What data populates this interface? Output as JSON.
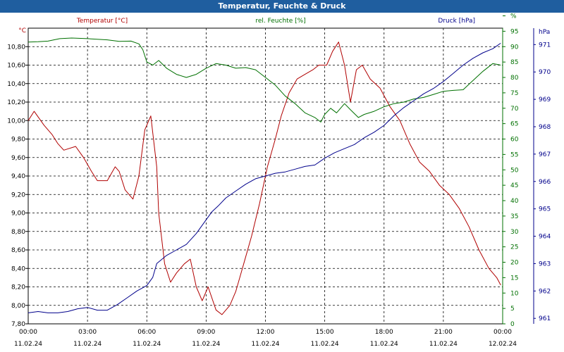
{
  "window": {
    "title": "Temperatur, Feuchte & Druck"
  },
  "chart_data": {
    "type": "line",
    "x_ticks": [
      {
        "time": "00:00",
        "date": "11.02.24"
      },
      {
        "time": "03:00",
        "date": "11.02.24"
      },
      {
        "time": "06:00",
        "date": "11.02.24"
      },
      {
        "time": "09:00",
        "date": "11.02.24"
      },
      {
        "time": "12:00",
        "date": "11.02.24"
      },
      {
        "time": "15:00",
        "date": "11.02.24"
      },
      {
        "time": "18:00",
        "date": "11.02.24"
      },
      {
        "time": "21:00",
        "date": "11.02.24"
      },
      {
        "time": "00:00",
        "date": "12.02.24"
      }
    ],
    "xlim_hours": [
      0,
      24
    ],
    "grid": true,
    "axes": {
      "left": {
        "unit": "°C",
        "min": 7.8,
        "max": 11.0,
        "ticks": [
          "7,80",
          "8,00",
          "8,20",
          "8,40",
          "8,60",
          "8,80",
          "9,00",
          "9,20",
          "9,40",
          "9,60",
          "9,80",
          "10,00",
          "10,20",
          "10,40",
          "10,60",
          "10,80"
        ],
        "color": "#b00000"
      },
      "right1": {
        "unit": "%",
        "min": 0,
        "max": 96,
        "ticks": [
          "0",
          "5",
          "10",
          "15",
          "20",
          "25",
          "30",
          "35",
          "40",
          "45",
          "50",
          "55",
          "60",
          "65",
          "70",
          "75",
          "80",
          "85",
          "90",
          "95",
          "%"
        ],
        "color": "#007000"
      },
      "right2": {
        "unit": "hPa",
        "min": 960.8,
        "max": 971.6,
        "ticks": [
          "961",
          "962",
          "963",
          "964",
          "965",
          "966",
          "967",
          "968",
          "969",
          "970",
          "971"
        ],
        "color": "#00008b"
      }
    },
    "series": [
      {
        "name": "Temperatur [°C]",
        "axis": "left",
        "color": "#b00000",
        "points": [
          [
            0,
            10.0
          ],
          [
            0.3,
            10.1
          ],
          [
            0.8,
            9.95
          ],
          [
            1.2,
            9.85
          ],
          [
            1.5,
            9.75
          ],
          [
            1.8,
            9.68
          ],
          [
            2.4,
            9.72
          ],
          [
            2.8,
            9.6
          ],
          [
            3.2,
            9.45
          ],
          [
            3.5,
            9.35
          ],
          [
            4.0,
            9.35
          ],
          [
            4.4,
            9.5
          ],
          [
            4.6,
            9.45
          ],
          [
            4.9,
            9.25
          ],
          [
            5.3,
            9.15
          ],
          [
            5.6,
            9.4
          ],
          [
            5.9,
            9.9
          ],
          [
            6.2,
            10.05
          ],
          [
            6.5,
            9.5
          ],
          [
            6.6,
            9.0
          ],
          [
            6.9,
            8.45
          ],
          [
            7.2,
            8.25
          ],
          [
            7.5,
            8.35
          ],
          [
            7.9,
            8.45
          ],
          [
            8.2,
            8.5
          ],
          [
            8.5,
            8.2
          ],
          [
            8.8,
            8.05
          ],
          [
            9.1,
            8.2
          ],
          [
            9.5,
            7.95
          ],
          [
            9.8,
            7.9
          ],
          [
            10.2,
            8.0
          ],
          [
            10.5,
            8.15
          ],
          [
            10.9,
            8.45
          ],
          [
            11.3,
            8.75
          ],
          [
            11.7,
            9.1
          ],
          [
            12.1,
            9.5
          ],
          [
            12.5,
            9.8
          ],
          [
            12.8,
            10.05
          ],
          [
            13.2,
            10.3
          ],
          [
            13.6,
            10.45
          ],
          [
            14.0,
            10.5
          ],
          [
            14.4,
            10.55
          ],
          [
            14.7,
            10.6
          ],
          [
            15.1,
            10.6
          ],
          [
            15.4,
            10.75
          ],
          [
            15.7,
            10.85
          ],
          [
            16.0,
            10.6
          ],
          [
            16.3,
            10.2
          ],
          [
            16.6,
            10.55
          ],
          [
            16.9,
            10.6
          ],
          [
            17.3,
            10.45
          ],
          [
            17.8,
            10.35
          ],
          [
            18.3,
            10.15
          ],
          [
            18.8,
            10.0
          ],
          [
            19.3,
            9.75
          ],
          [
            19.8,
            9.55
          ],
          [
            20.3,
            9.45
          ],
          [
            20.8,
            9.3
          ],
          [
            21.3,
            9.2
          ],
          [
            21.8,
            9.05
          ],
          [
            22.3,
            8.85
          ],
          [
            22.8,
            8.6
          ],
          [
            23.3,
            8.4
          ],
          [
            23.7,
            8.3
          ],
          [
            23.9,
            8.22
          ]
        ]
      },
      {
        "name": "rel. Feuchte [%]",
        "axis": "right1",
        "color": "#007000",
        "points": [
          [
            0,
            91.5
          ],
          [
            0.5,
            91.6
          ],
          [
            1.0,
            91.8
          ],
          [
            1.6,
            92.6
          ],
          [
            2.2,
            92.8
          ],
          [
            3.0,
            92.6
          ],
          [
            4.0,
            92.2
          ],
          [
            4.6,
            91.7
          ],
          [
            5.2,
            91.8
          ],
          [
            5.6,
            90.9
          ],
          [
            5.8,
            89.0
          ],
          [
            6.0,
            85.0
          ],
          [
            6.3,
            84.0
          ],
          [
            6.6,
            85.5
          ],
          [
            7.0,
            83.0
          ],
          [
            7.5,
            81.0
          ],
          [
            8.0,
            80.0
          ],
          [
            8.5,
            81.0
          ],
          [
            9.0,
            83.0
          ],
          [
            9.5,
            84.5
          ],
          [
            10.0,
            84.0
          ],
          [
            10.5,
            83.0
          ],
          [
            11.0,
            83.2
          ],
          [
            11.5,
            82.5
          ],
          [
            12.0,
            80.0
          ],
          [
            12.5,
            77.5
          ],
          [
            13.0,
            74.0
          ],
          [
            13.5,
            71.5
          ],
          [
            14.0,
            68.5
          ],
          [
            14.5,
            67.0
          ],
          [
            14.8,
            65.5
          ],
          [
            15.0,
            68.0
          ],
          [
            15.3,
            70.0
          ],
          [
            15.6,
            68.5
          ],
          [
            16.0,
            71.5
          ],
          [
            16.3,
            69.5
          ],
          [
            16.7,
            67.0
          ],
          [
            17.0,
            68.0
          ],
          [
            17.5,
            69.0
          ],
          [
            18.0,
            70.5
          ],
          [
            18.5,
            71.5
          ],
          [
            19.0,
            72.0
          ],
          [
            19.5,
            73.0
          ],
          [
            20.0,
            73.5
          ],
          [
            20.5,
            74.5
          ],
          [
            21.0,
            75.5
          ],
          [
            21.5,
            75.8
          ],
          [
            22.0,
            76.0
          ],
          [
            22.5,
            79.0
          ],
          [
            23.0,
            82.0
          ],
          [
            23.5,
            84.5
          ],
          [
            23.9,
            84.0
          ]
        ]
      },
      {
        "name": "Druck [hPa]",
        "axis": "right2",
        "color": "#00008b",
        "points": [
          [
            0,
            961.2
          ],
          [
            0.5,
            961.25
          ],
          [
            1.0,
            961.2
          ],
          [
            1.5,
            961.2
          ],
          [
            2.0,
            961.25
          ],
          [
            2.5,
            961.35
          ],
          [
            3.0,
            961.4
          ],
          [
            3.5,
            961.3
          ],
          [
            4.0,
            961.3
          ],
          [
            4.5,
            961.5
          ],
          [
            5.0,
            961.75
          ],
          [
            5.5,
            962.0
          ],
          [
            6.0,
            962.2
          ],
          [
            6.3,
            962.5
          ],
          [
            6.5,
            963.0
          ],
          [
            7.0,
            963.3
          ],
          [
            7.5,
            963.5
          ],
          [
            8.0,
            963.7
          ],
          [
            8.5,
            964.1
          ],
          [
            9.0,
            964.6
          ],
          [
            9.3,
            964.9
          ],
          [
            9.6,
            965.1
          ],
          [
            10.0,
            965.4
          ],
          [
            10.5,
            965.65
          ],
          [
            11.0,
            965.9
          ],
          [
            11.5,
            966.1
          ],
          [
            12.0,
            966.2
          ],
          [
            12.5,
            966.3
          ],
          [
            13.0,
            966.35
          ],
          [
            13.5,
            966.45
          ],
          [
            14.0,
            966.55
          ],
          [
            14.5,
            966.6
          ],
          [
            15.0,
            966.85
          ],
          [
            15.5,
            967.05
          ],
          [
            16.0,
            967.2
          ],
          [
            16.5,
            967.35
          ],
          [
            17.0,
            967.6
          ],
          [
            17.5,
            967.8
          ],
          [
            18.0,
            968.05
          ],
          [
            18.5,
            968.4
          ],
          [
            19.0,
            968.7
          ],
          [
            19.5,
            968.95
          ],
          [
            20.0,
            969.2
          ],
          [
            20.5,
            969.4
          ],
          [
            21.0,
            969.65
          ],
          [
            21.5,
            969.95
          ],
          [
            22.0,
            970.25
          ],
          [
            22.5,
            970.5
          ],
          [
            23.0,
            970.7
          ],
          [
            23.5,
            970.85
          ],
          [
            23.9,
            971.05
          ]
        ]
      }
    ]
  }
}
